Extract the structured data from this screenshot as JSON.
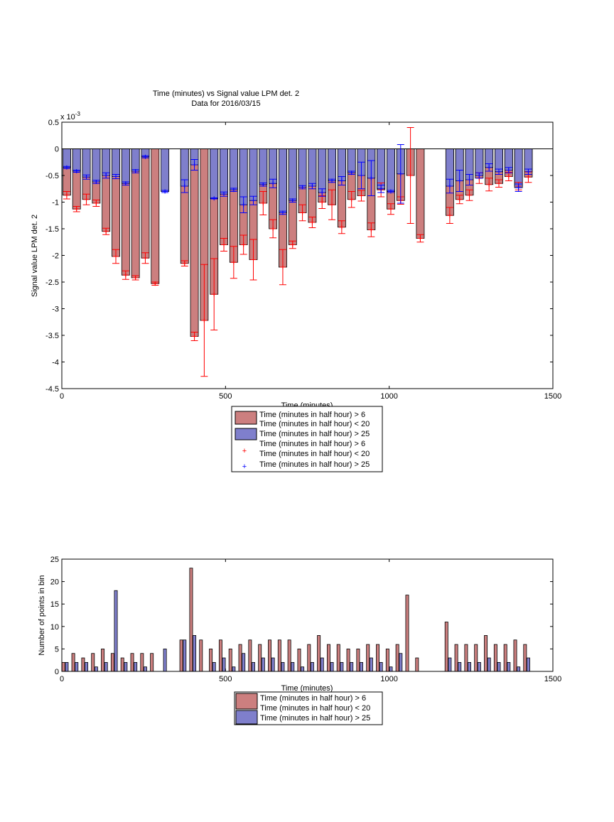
{
  "chart_data": [
    {
      "type": "bar",
      "title": "Time (minutes) vs Signal value LPM det. 2",
      "subtitle": "Data for 2016/03/15",
      "xlabel": "Time (minutes)",
      "ylabel": "Signal value LPM det. 2",
      "y_exponent_label": "x 10",
      "y_exponent_power": "-3",
      "xlim": [
        0,
        1500
      ],
      "ylim": [
        -4.5,
        0.5
      ],
      "xticks": [
        "0",
        "500",
        "1000",
        "1500"
      ],
      "yticks": [
        "0.5",
        "0",
        "-0.5",
        "-1",
        "-1.5",
        "-2",
        "-2.5",
        "-3",
        "-3.5",
        "-4",
        "-4.5"
      ],
      "grid": false,
      "legend_position": "below",
      "legend": [
        {
          "kind": "bar",
          "color": "#cc7f7f",
          "lines": [
            "Time (minutes in half hour) > 6",
            "Time (minutes in half hour) < 20"
          ]
        },
        {
          "kind": "bar",
          "color": "#7f7fcc",
          "lines": [
            "Time (minutes in half hour) > 25"
          ]
        },
        {
          "kind": "marker",
          "color": "#ff0000",
          "lines": [
            "Time (minutes in half hour) > 6",
            "Time (minutes in half hour) < 20"
          ]
        },
        {
          "kind": "marker",
          "color": "#0000ff",
          "lines": [
            "Time (minutes in half hour) > 25"
          ]
        }
      ],
      "series": [
        {
          "color": "#cc7f7f",
          "err_color": "#ff0000",
          "x": [
            15,
            45,
            75,
            105,
            135,
            165,
            195,
            225,
            255,
            285,
            375,
            405,
            435,
            465,
            495,
            525,
            555,
            585,
            615,
            645,
            675,
            705,
            735,
            765,
            795,
            825,
            855,
            885,
            915,
            945,
            975,
            1005,
            1035,
            1065,
            1095,
            1185,
            1215,
            1245,
            1275,
            1305,
            1335,
            1365,
            1395,
            1425
          ],
          "y": [
            -0.87,
            -1.13,
            -0.95,
            -1.02,
            -1.55,
            -2.02,
            -2.37,
            -2.42,
            -2.05,
            -2.53,
            -2.15,
            -3.52,
            -3.22,
            -2.73,
            -1.8,
            -2.13,
            -1.8,
            -2.08,
            -1.02,
            -1.5,
            -2.22,
            -1.8,
            -1.2,
            -1.38,
            -1.0,
            -1.05,
            -1.47,
            -0.95,
            -0.88,
            -1.52,
            -0.77,
            -1.13,
            -0.97,
            -0.5,
            -1.68,
            -1.25,
            -0.95,
            -0.87,
            -0.55,
            -0.67,
            -0.65,
            -0.52,
            -0.7,
            -0.53
          ],
          "err": [
            0.07,
            0.05,
            0.1,
            0.06,
            0.06,
            0.13,
            0.08,
            0.04,
            0.1,
            0.03,
            0.05,
            0.08,
            1.05,
            0.67,
            0.12,
            0.3,
            0.18,
            0.38,
            0.22,
            0.17,
            0.33,
            0.07,
            0.15,
            0.1,
            0.12,
            0.28,
            0.12,
            0.15,
            0.1,
            0.13,
            0.13,
            0.1,
            0.07,
            0.9,
            0.07,
            0.15,
            0.08,
            0.1,
            0.1,
            0.12,
            0.07,
            0.08,
            0.07,
            0.1
          ]
        },
        {
          "color": "#7f7fcc",
          "err_color": "#0000ff",
          "x": [
            15,
            45,
            75,
            105,
            135,
            165,
            195,
            225,
            255,
            315,
            375,
            405,
            465,
            495,
            525,
            555,
            585,
            615,
            645,
            675,
            705,
            735,
            765,
            795,
            825,
            855,
            885,
            915,
            945,
            975,
            1005,
            1035,
            1185,
            1215,
            1245,
            1275,
            1305,
            1335,
            1365,
            1395,
            1425
          ],
          "y": [
            -0.35,
            -0.42,
            -0.53,
            -0.62,
            -0.5,
            -0.52,
            -0.65,
            -0.42,
            -0.15,
            -0.8,
            -0.7,
            -0.3,
            -0.93,
            -0.85,
            -0.77,
            -1.05,
            -0.97,
            -0.67,
            -0.65,
            -1.2,
            -0.97,
            -0.72,
            -0.7,
            -0.82,
            -0.6,
            -0.6,
            -0.45,
            -0.5,
            -0.55,
            -0.75,
            -0.8,
            -0.47,
            -0.7,
            -0.6,
            -0.58,
            -0.5,
            -0.35,
            -0.43,
            -0.4,
            -0.73,
            -0.43
          ],
          "err": [
            0.02,
            0.02,
            0.04,
            0.03,
            0.05,
            0.04,
            0.03,
            0.03,
            0.02,
            0.02,
            0.12,
            0.1,
            0.01,
            0.04,
            0.03,
            0.15,
            0.08,
            0.03,
            0.08,
            0.03,
            0.03,
            0.03,
            0.05,
            0.07,
            0.03,
            0.08,
            0.03,
            0.25,
            0.33,
            0.07,
            0.02,
            0.55,
            0.13,
            0.2,
            0.1,
            0.05,
            0.07,
            0.05,
            0.05,
            0.07,
            0.05
          ]
        }
      ]
    },
    {
      "type": "bar",
      "xlabel": "Time (minutes)",
      "ylabel": "Number of points in bin",
      "xlim": [
        0,
        1500
      ],
      "ylim": [
        0,
        25
      ],
      "xticks": [
        "0",
        "500",
        "1000",
        "1500"
      ],
      "yticks": [
        "0",
        "5",
        "10",
        "15",
        "20",
        "25"
      ],
      "grid": false,
      "legend_position": "below",
      "legend": [
        {
          "kind": "bar",
          "color": "#cc7f7f",
          "lines": [
            "Time (minutes in half hour) > 6",
            "Time (minutes in half hour) < 20"
          ]
        },
        {
          "kind": "bar",
          "color": "#7f7fcc",
          "lines": [
            "Time (minutes in half hour) > 25"
          ]
        }
      ],
      "series": [
        {
          "color": "#cc7f7f",
          "x": [
            5,
            35,
            65,
            95,
            125,
            155,
            185,
            215,
            245,
            275,
            365,
            395,
            425,
            455,
            485,
            515,
            545,
            575,
            605,
            635,
            665,
            695,
            725,
            755,
            785,
            815,
            845,
            875,
            905,
            935,
            965,
            995,
            1025,
            1055,
            1085,
            1175,
            1205,
            1235,
            1265,
            1295,
            1325,
            1355,
            1385,
            1415
          ],
          "values": [
            2,
            4,
            3,
            4,
            5,
            4,
            3,
            4,
            4,
            4,
            7,
            23,
            7,
            5,
            7,
            5,
            6,
            7,
            6,
            7,
            7,
            7,
            5,
            6,
            8,
            6,
            6,
            5,
            5,
            6,
            6,
            5,
            6,
            17,
            3,
            11,
            6,
            6,
            6,
            8,
            6,
            6,
            7,
            6
          ]
        },
        {
          "color": "#7f7fcc",
          "x": [
            15,
            45,
            75,
            105,
            135,
            165,
            195,
            225,
            255,
            315,
            375,
            405,
            465,
            495,
            525,
            555,
            585,
            615,
            645,
            675,
            705,
            735,
            765,
            795,
            825,
            855,
            885,
            915,
            945,
            975,
            1005,
            1035,
            1185,
            1215,
            1245,
            1275,
            1305,
            1335,
            1365,
            1395,
            1425
          ],
          "values": [
            2,
            2,
            2,
            1,
            2,
            18,
            2,
            2,
            1,
            5,
            7,
            8,
            2,
            3,
            1,
            4,
            2,
            3,
            3,
            2,
            2,
            1,
            2,
            3,
            2,
            2,
            2,
            2,
            3,
            2,
            1,
            4,
            3,
            2,
            2,
            2,
            3,
            2,
            2,
            1,
            3
          ]
        }
      ]
    }
  ]
}
